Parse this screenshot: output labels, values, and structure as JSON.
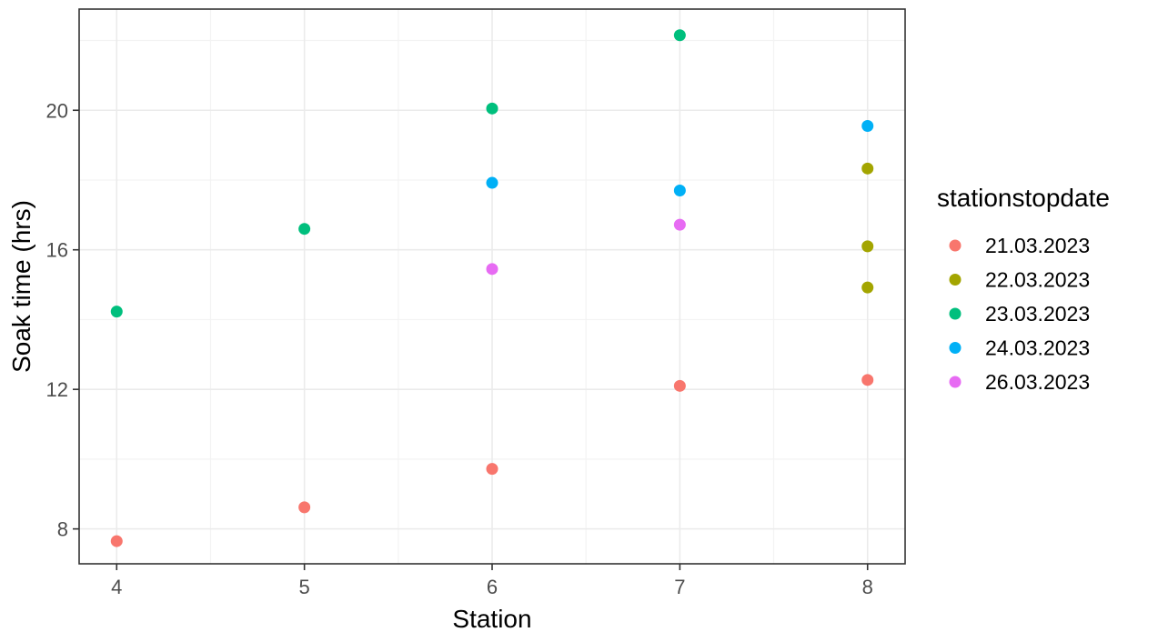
{
  "chart_data": {
    "type": "scatter",
    "title": "",
    "xlabel": "Station",
    "ylabel": "Soak time (hrs)",
    "xlim": [
      3.8,
      8.2
    ],
    "ylim": [
      7.0,
      22.9
    ],
    "x_ticks": [
      4,
      5,
      6,
      7,
      8
    ],
    "y_ticks": [
      8,
      12,
      16,
      20
    ],
    "grid": true,
    "legend": {
      "title": "stationstopdate",
      "placement": "right"
    },
    "series": [
      {
        "name": "21.03.2023",
        "color": "#F8766D",
        "points": [
          {
            "x": 4,
            "y": 7.65
          },
          {
            "x": 5,
            "y": 8.62
          },
          {
            "x": 6,
            "y": 9.72
          },
          {
            "x": 7,
            "y": 12.1
          },
          {
            "x": 8,
            "y": 12.27
          }
        ]
      },
      {
        "name": "22.03.2023",
        "color": "#A3A500",
        "points": [
          {
            "x": 8,
            "y": 18.33
          },
          {
            "x": 8,
            "y": 16.1
          },
          {
            "x": 8,
            "y": 14.92
          }
        ]
      },
      {
        "name": "23.03.2023",
        "color": "#00BF7D",
        "points": [
          {
            "x": 4,
            "y": 14.23
          },
          {
            "x": 5,
            "y": 16.6
          },
          {
            "x": 6,
            "y": 20.05
          },
          {
            "x": 7,
            "y": 22.15
          }
        ]
      },
      {
        "name": "24.03.2023",
        "color": "#00B0F6",
        "points": [
          {
            "x": 6,
            "y": 17.92
          },
          {
            "x": 7,
            "y": 17.7
          },
          {
            "x": 8,
            "y": 19.55
          }
        ]
      },
      {
        "name": "26.03.2023",
        "color": "#E76BF3",
        "points": [
          {
            "x": 6,
            "y": 15.45
          },
          {
            "x": 7,
            "y": 16.72
          }
        ]
      }
    ]
  }
}
